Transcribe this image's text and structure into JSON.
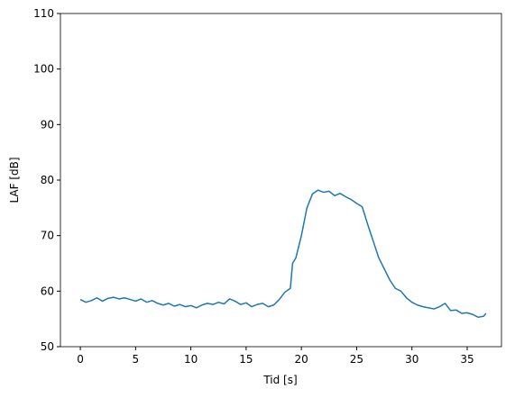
{
  "chart_data": {
    "type": "line",
    "x_label": "Tid [s]",
    "y_label": "LAF [dB]",
    "x": [
      0,
      0.5,
      1,
      1.5,
      2,
      2.5,
      3,
      3.5,
      4,
      4.5,
      5,
      5.5,
      6,
      6.5,
      7,
      7.5,
      8,
      8.5,
      9,
      9.5,
      10,
      10.5,
      11,
      11.5,
      12,
      12.5,
      13,
      13.5,
      14,
      14.5,
      15,
      15.5,
      16,
      16.5,
      17,
      17.5,
      18,
      18.5,
      19,
      19.2,
      19.5,
      20,
      20.5,
      21,
      21.5,
      22,
      22.5,
      23,
      23.5,
      24,
      24.5,
      25,
      25.5,
      26,
      26.5,
      27,
      27.5,
      28,
      28.5,
      29,
      29.5,
      30,
      30.5,
      31,
      31.5,
      32,
      32.5,
      33,
      33.5,
      34,
      34.5,
      35,
      35.5,
      36,
      36.5,
      36.7
    ],
    "series": [
      {
        "name": "LAF",
        "color": "#1f77b4",
        "values": [
          58.5,
          58.0,
          58.3,
          58.8,
          58.2,
          58.7,
          58.9,
          58.6,
          58.8,
          58.5,
          58.2,
          58.6,
          58.0,
          58.3,
          57.8,
          57.5,
          57.8,
          57.3,
          57.6,
          57.2,
          57.4,
          57.0,
          57.5,
          57.8,
          57.6,
          58.0,
          57.7,
          58.6,
          58.2,
          57.6,
          57.9,
          57.2,
          57.6,
          57.8,
          57.2,
          57.5,
          58.5,
          59.8,
          60.5,
          65,
          66,
          70,
          75,
          77.5,
          78.2,
          77.8,
          78,
          77.2,
          77.6,
          77.0,
          76.5,
          75.8,
          75.2,
          72,
          69,
          66,
          64,
          62,
          60.5,
          60,
          58.8,
          58,
          57.5,
          57.2,
          57.0,
          56.8,
          57.2,
          57.8,
          56.5,
          56.6,
          56.0,
          56.1,
          55.8,
          55.3,
          55.5,
          56.0
        ]
      }
    ],
    "xlim": [
      -1.8,
      38.1
    ],
    "ylim": [
      50,
      110
    ],
    "xticks": [
      0,
      5,
      10,
      15,
      20,
      25,
      30,
      35
    ],
    "yticks": [
      50,
      60,
      70,
      80,
      90,
      100,
      110
    ]
  }
}
